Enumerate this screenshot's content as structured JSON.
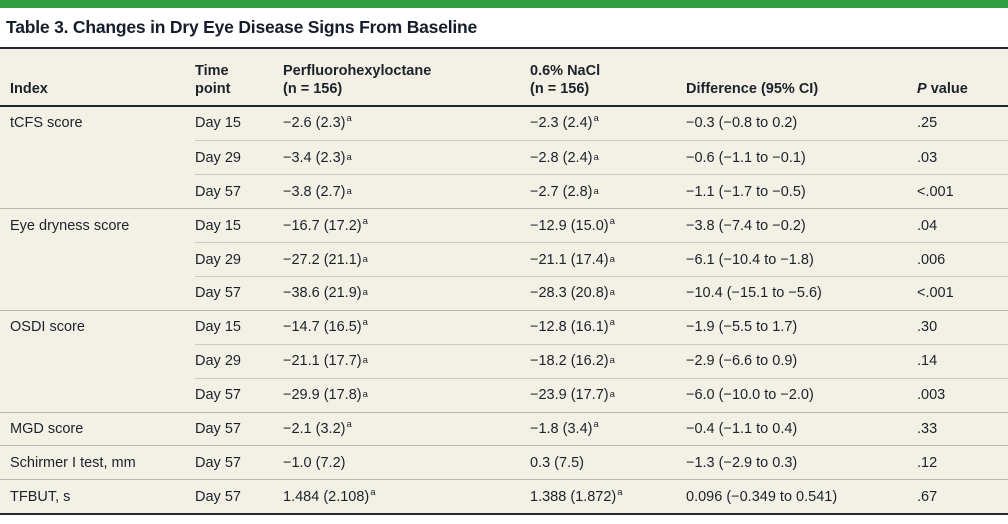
{
  "title": "Table 3. Changes in Dry Eye Disease Signs From Baseline",
  "colors": {
    "accent_green": "#2f9e41",
    "table_background": "#f3f1e6",
    "text": "#1c2228",
    "dark_rule": "#23292e",
    "row_separator": "#cdcabe"
  },
  "table": {
    "header": {
      "index": "Index",
      "time_line1": "Time",
      "time_line2": "point",
      "pfho_line1": "Perfluorohexyloctane",
      "pfho_line2": "(n = 156)",
      "nacl_line1": "0.6% NaCl",
      "nacl_line2": "(n = 156)",
      "difference": "Difference (95% CI)",
      "p_label_italic": "P",
      "p_label_rest": " value"
    },
    "footnote_marker": "a",
    "rows": [
      {
        "sep": "none",
        "index": "tCFS score",
        "time": "Day 15",
        "pfho": "−2.6 (2.3)",
        "pfho_sup": true,
        "nacl": "−2.3 (2.4)",
        "nacl_sup": true,
        "diff": "−0.3 (−0.8 to 0.2)",
        "p": ".25"
      },
      {
        "sep": "part",
        "index": "",
        "time": "Day 29",
        "pfho": "−3.4 (2.3)",
        "pfho_sup": true,
        "nacl": "−2.8 (2.4)",
        "nacl_sup": true,
        "diff": "−0.6 (−1.1 to −0.1)",
        "p": ".03"
      },
      {
        "sep": "part",
        "index": "",
        "time": "Day 57",
        "pfho": "−3.8 (2.7)",
        "pfho_sup": true,
        "nacl": "−2.7 (2.8)",
        "nacl_sup": true,
        "diff": "−1.1 (−1.7 to −0.5)",
        "p": "<.001"
      },
      {
        "sep": "full",
        "index": "Eye dryness score",
        "time": "Day 15",
        "pfho": "−16.7 (17.2)",
        "pfho_sup": true,
        "nacl": "−12.9 (15.0)",
        "nacl_sup": true,
        "diff": "−3.8 (−7.4 to −0.2)",
        "p": ".04"
      },
      {
        "sep": "part",
        "index": "",
        "time": "Day 29",
        "pfho": "−27.2 (21.1)",
        "pfho_sup": true,
        "nacl": "−21.1 (17.4)",
        "nacl_sup": true,
        "diff": "−6.1 (−10.4 to −1.8)",
        "p": ".006"
      },
      {
        "sep": "part",
        "index": "",
        "time": "Day 57",
        "pfho": "−38.6 (21.9)",
        "pfho_sup": true,
        "nacl": "−28.3 (20.8)",
        "nacl_sup": true,
        "diff": "−10.4 (−15.1 to −5.6)",
        "p": "<.001"
      },
      {
        "sep": "full",
        "index": "OSDI score",
        "time": "Day 15",
        "pfho": "−14.7 (16.5)",
        "pfho_sup": true,
        "nacl": "−12.8 (16.1)",
        "nacl_sup": true,
        "diff": "−1.9 (−5.5 to 1.7)",
        "p": ".30"
      },
      {
        "sep": "part",
        "index": "",
        "time": "Day 29",
        "pfho": "−21.1 (17.7)",
        "pfho_sup": true,
        "nacl": "−18.2 (16.2)",
        "nacl_sup": true,
        "diff": "−2.9 (−6.6 to 0.9)",
        "p": ".14"
      },
      {
        "sep": "part",
        "index": "",
        "time": "Day 57",
        "pfho": "−29.9 (17.8)",
        "pfho_sup": true,
        "nacl": "−23.9 (17.7)",
        "nacl_sup": true,
        "diff": "−6.0 (−10.0 to −2.0)",
        "p": ".003"
      },
      {
        "sep": "full",
        "index": "MGD score",
        "time": "Day 57",
        "pfho": "−2.1 (3.2)",
        "pfho_sup": true,
        "nacl": "−1.8 (3.4)",
        "nacl_sup": true,
        "diff": "−0.4 (−1.1 to 0.4)",
        "p": ".33"
      },
      {
        "sep": "full",
        "index": "Schirmer I test, mm",
        "time": "Day 57",
        "pfho": "−1.0 (7.2)",
        "pfho_sup": false,
        "nacl": "0.3 (7.5)",
        "nacl_sup": false,
        "diff": "−1.3 (−2.9 to 0.3)",
        "p": ".12"
      },
      {
        "sep": "full",
        "index": "TFBUT, s",
        "time": "Day 57",
        "pfho": "1.484 (2.108)",
        "pfho_sup": true,
        "nacl": "1.388 (1.872)",
        "nacl_sup": true,
        "diff": "0.096 (−0.349 to 0.541)",
        "p": ".67"
      }
    ]
  }
}
